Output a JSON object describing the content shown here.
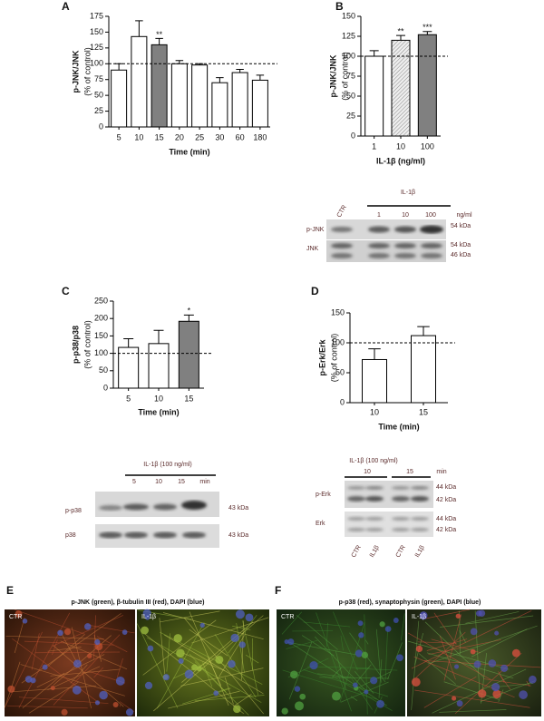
{
  "chart_data": [
    {
      "type": "bar",
      "panel": "A",
      "ylabel": "p-JNK/JNK",
      "ylabel2": "(% of control)",
      "xlabel": "Time (min)",
      "categories": [
        "5",
        "10",
        "15",
        "20",
        "25",
        "30",
        "60",
        "180"
      ],
      "values": [
        90,
        143,
        130,
        100,
        98,
        70,
        86,
        74
      ],
      "errors": [
        10,
        25,
        10,
        5,
        2,
        8,
        5,
        8
      ],
      "colors": [
        "#ffffff",
        "#ffffff",
        "#808080",
        "#ffffff",
        "#ffffff",
        "#ffffff",
        "#ffffff",
        "#ffffff"
      ],
      "stars": [
        null,
        null,
        "**",
        null,
        null,
        null,
        null,
        null
      ],
      "ylim": [
        0,
        175
      ],
      "yticks": [
        0,
        25,
        50,
        75,
        100,
        125,
        150,
        175
      ],
      "reference_line": 100
    },
    {
      "type": "bar",
      "panel": "B",
      "ylabel": "p-JNK/JNK",
      "ylabel2": "(% of control)",
      "xlabel": "IL-1β (ng/ml)",
      "categories": [
        "1",
        "10",
        "100"
      ],
      "values": [
        100,
        120,
        127
      ],
      "errors": [
        7,
        6,
        4
      ],
      "colors": [
        "#ffffff",
        "#d9d9d9",
        "#808080"
      ],
      "hatch": [
        false,
        true,
        false
      ],
      "stars": [
        null,
        "**",
        "***"
      ],
      "ylim": [
        0,
        150
      ],
      "yticks": [
        0,
        25,
        50,
        75,
        100,
        125,
        150
      ],
      "reference_line": 100
    },
    {
      "type": "bar",
      "panel": "C",
      "ylabel": "p-p38/p38",
      "ylabel2": "(% of control)",
      "xlabel": "Time (min)",
      "categories": [
        "5",
        "10",
        "15"
      ],
      "values": [
        117,
        128,
        192
      ],
      "errors": [
        25,
        38,
        18
      ],
      "colors": [
        "#ffffff",
        "#ffffff",
        "#808080"
      ],
      "stars": [
        null,
        null,
        "*"
      ],
      "ylim": [
        0,
        250
      ],
      "yticks": [
        0,
        50,
        100,
        150,
        200,
        250
      ],
      "reference_line": 100
    },
    {
      "type": "bar",
      "panel": "D",
      "ylabel": "p-Erk/Erk",
      "ylabel2": "(% of control)",
      "xlabel": "Time (min)",
      "categories": [
        "10",
        "15"
      ],
      "values": [
        72,
        112
      ],
      "errors": [
        18,
        15
      ],
      "colors": [
        "#ffffff",
        "#ffffff"
      ],
      "ylim": [
        0,
        150
      ],
      "yticks": [
        0,
        50,
        100,
        150
      ],
      "reference_line": 100
    }
  ],
  "blots": [
    {
      "header": "IL-1β",
      "columns": [
        "CTR",
        "1",
        "10",
        "100"
      ],
      "unit": "ng/ml",
      "rows": [
        {
          "label": "p-JNK",
          "kda": [
            "54 kDa"
          ]
        },
        {
          "label": "JNK",
          "kda": [
            "54 kDa",
            "46 kDa"
          ]
        }
      ]
    },
    {
      "header": "IL-1β (100 ng/ml)",
      "columns": [
        "5",
        "10",
        "15"
      ],
      "unit": "min",
      "rows": [
        {
          "label": "p-p38",
          "kda": [
            "43 kDa"
          ]
        },
        {
          "label": "p38",
          "kda": [
            "43 kDa"
          ]
        }
      ]
    },
    {
      "header": "IL-1β (100 ng/ml)",
      "columns": [
        "10",
        "15"
      ],
      "unit": "min",
      "rows": [
        {
          "label": "p-Erk",
          "kda": [
            "44 kDa",
            "42 kDa"
          ]
        },
        {
          "label": "Erk",
          "kda": [
            "44 kDa",
            "42 kDa"
          ]
        }
      ],
      "lanes": [
        "CTR",
        "IL1β",
        "CTR",
        "IL1β"
      ]
    }
  ],
  "micrographs": [
    {
      "panel": "E",
      "caption": "p-JNK (green), β-tubulin III (red), DAPI (blue)",
      "images": [
        "CTR",
        "IL-1β"
      ]
    },
    {
      "panel": "F",
      "caption": "p-p38 (red), synaptophysin (green), DAPI (blue)",
      "images": [
        "CTR",
        "IL-1β"
      ]
    }
  ]
}
